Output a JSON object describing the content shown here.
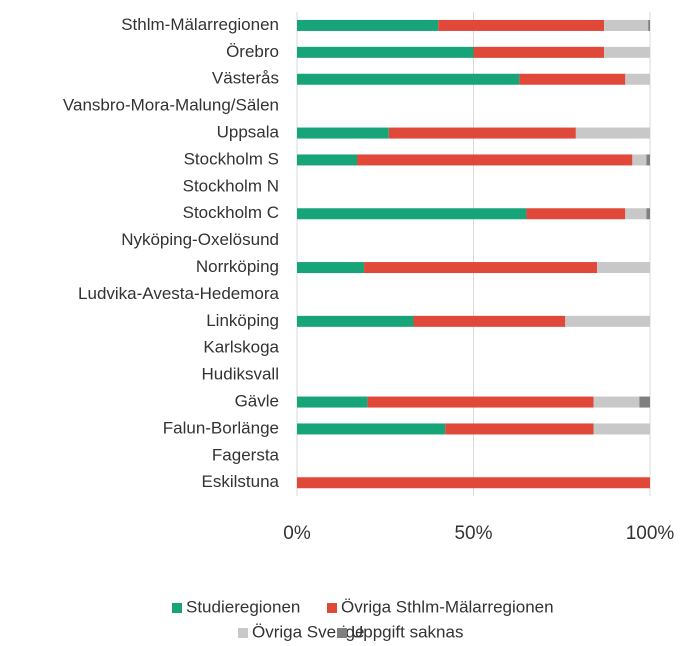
{
  "chart_data": {
    "type": "stacked_barh",
    "categories": [
      "Sthlm-Mälarregionen",
      "Örebro",
      "Västerås",
      "Vansbro-Mora-Malung/Sälen",
      "Uppsala",
      "Stockholm S",
      "Stockholm N",
      "Stockholm C",
      "Nyköping-Oxelösund",
      "Norrköping",
      "Ludvika-Avesta-Hedemora",
      "Linköping",
      "Karlskoga",
      "Hudiksvall",
      "Gävle",
      "Falun-Borlänge",
      "Fagersta",
      "Eskilstuna"
    ],
    "series": [
      {
        "name": "Studieregionen",
        "color": "#17a478",
        "values": [
          40,
          50,
          63,
          null,
          26,
          17,
          null,
          65,
          null,
          19,
          null,
          33,
          null,
          null,
          20,
          42,
          null,
          0
        ]
      },
      {
        "name": "Övriga Sthlm-Mälarregionen",
        "color": "#e0483a",
        "values": [
          47,
          37,
          30,
          null,
          53,
          78,
          null,
          28,
          null,
          66,
          null,
          43,
          null,
          null,
          64,
          42,
          null,
          100
        ]
      },
      {
        "name": "Övriga Sverige",
        "color": "#c8c8c8",
        "values": [
          12.5,
          13,
          7,
          null,
          21,
          4,
          null,
          6,
          null,
          15,
          null,
          24,
          null,
          null,
          13,
          16,
          null,
          0
        ]
      },
      {
        "name": "Uppgift saknas",
        "color": "#7f7f7f",
        "values": [
          0.5,
          0,
          0,
          null,
          0,
          1,
          null,
          1,
          null,
          0,
          null,
          0,
          null,
          null,
          3,
          0,
          null,
          0
        ]
      }
    ],
    "xlim": [
      0,
      100
    ],
    "xticks": [
      {
        "value": 0,
        "label": "0%"
      },
      {
        "value": 50,
        "label": "50%"
      },
      {
        "value": 100,
        "label": "100%"
      }
    ],
    "grid": true
  }
}
